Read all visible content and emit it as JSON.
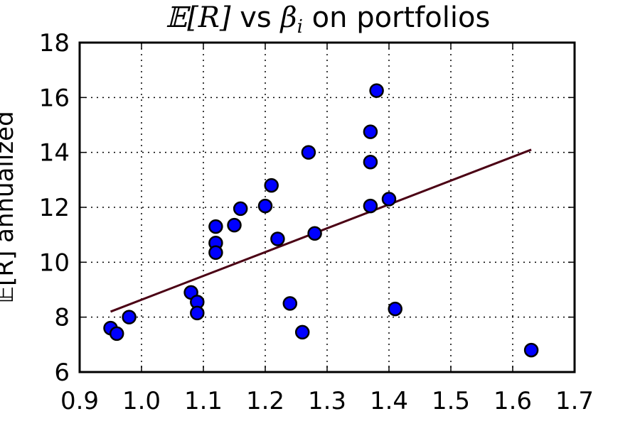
{
  "chart_data": {
    "type": "scatter",
    "title": {
      "symbol": "𝔼",
      "var": "[R]",
      "mid": " vs ",
      "beta": "β",
      "sub": "i",
      "tail": " on portfolios"
    },
    "ylabel": "𝔼[R] annualized",
    "xlabel": "",
    "xlim": [
      0.9,
      1.7
    ],
    "ylim": [
      6,
      18
    ],
    "xticks": [
      "0.9",
      "1.0",
      "1.1",
      "1.2",
      "1.3",
      "1.4",
      "1.5",
      "1.6",
      "1.7"
    ],
    "yticks": [
      "6",
      "8",
      "10",
      "12",
      "14",
      "16",
      "18"
    ],
    "grid": true,
    "colors": {
      "points": "#0000ff",
      "point_edge": "#000000",
      "fit_line": "#4b0014"
    },
    "series": [
      {
        "type": "scatter",
        "x": [
          0.95,
          0.96,
          0.98,
          1.08,
          1.09,
          1.09,
          1.12,
          1.12,
          1.12,
          1.15,
          1.16,
          1.2,
          1.21,
          1.22,
          1.24,
          1.26,
          1.27,
          1.28,
          1.37,
          1.37,
          1.37,
          1.38,
          1.4,
          1.41,
          1.63
        ],
        "y": [
          7.6,
          7.4,
          8.0,
          8.9,
          8.55,
          8.15,
          11.3,
          10.7,
          10.35,
          11.35,
          11.95,
          12.05,
          12.8,
          10.85,
          8.5,
          7.45,
          14.0,
          11.05,
          14.75,
          13.65,
          12.05,
          16.25,
          12.3,
          8.3,
          6.8
        ]
      },
      {
        "type": "line",
        "x": [
          0.95,
          1.63
        ],
        "y": [
          8.2,
          14.1
        ]
      }
    ]
  }
}
